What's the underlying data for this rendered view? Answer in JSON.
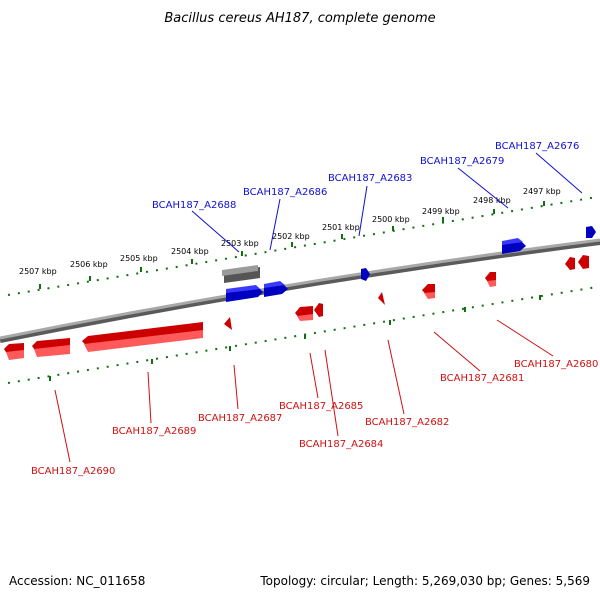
{
  "header": {
    "title": "Bacillus cereus AH187, complete genome"
  },
  "footer": {
    "accession": "Accession: NC_011658",
    "summary": "Topology: circular; Length: 5,269,030 bp; Genes: 5,569"
  },
  "scale_labels": [
    "2507 kbp",
    "2506 kbp",
    "2505 kbp",
    "2504 kbp",
    "2503 kbp",
    "2502 kbp",
    "2501 kbp",
    "2500 kbp",
    "2499 kbp",
    "2498 kbp",
    "2497 kbp"
  ],
  "genes_top": [
    "BCAH187_A2688",
    "BCAH187_A2686",
    "BCAH187_A2683",
    "BCAH187_A2679",
    "BCAH187_A2676"
  ],
  "genes_bottom": [
    "BCAH187_A2690",
    "BCAH187_A2689",
    "BCAH187_A2687",
    "BCAH187_A2685",
    "BCAH187_A2684",
    "BCAH187_A2682",
    "BCAH187_A2681",
    "BCAH187_A2680"
  ],
  "colors": {
    "forward_gene": "#1010d0",
    "reverse_gene": "#d01010",
    "other_feature": "#707070",
    "backbone": "#808080",
    "ticks": "#107010"
  }
}
